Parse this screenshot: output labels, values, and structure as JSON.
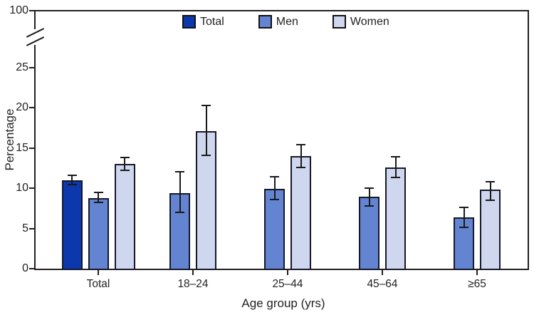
{
  "chart_data": {
    "type": "bar",
    "title": "",
    "xlabel": "Age group (yrs)",
    "ylabel": "Percentage",
    "y_axis": {
      "ticks": [
        0,
        5,
        10,
        15,
        20,
        25
      ],
      "broken_axis": true,
      "top_label_after_break": "100",
      "ylim_shown": [
        0,
        27
      ],
      "grid": false
    },
    "legend_position": "top-center",
    "legend": [
      {
        "name": "Total",
        "color": "#0d38ad"
      },
      {
        "name": "Men",
        "color": "#6384d0"
      },
      {
        "name": "Women",
        "color": "#cfd7ee"
      }
    ],
    "colors": {
      "total": "#0d38ad",
      "men": "#6384d0",
      "women": "#cfd7ee",
      "bar_border": "#16182b",
      "axis": "#231f20"
    },
    "error_bars": "95% confidence intervals",
    "groups": [
      {
        "label": "Total",
        "bars": [
          {
            "series": "Total",
            "value": 11.0,
            "ci_low": 10.4,
            "ci_high": 11.6
          },
          {
            "series": "Men",
            "value": 8.8,
            "ci_low": 8.2,
            "ci_high": 9.5
          },
          {
            "series": "Women",
            "value": 13.0,
            "ci_low": 12.2,
            "ci_high": 13.8
          }
        ]
      },
      {
        "label": "18–24",
        "bars": [
          {
            "series": "Men",
            "value": 9.4,
            "ci_low": 7.0,
            "ci_high": 12.0
          },
          {
            "series": "Women",
            "value": 17.1,
            "ci_low": 14.1,
            "ci_high": 20.3
          }
        ]
      },
      {
        "label": "25–44",
        "bars": [
          {
            "series": "Men",
            "value": 9.9,
            "ci_low": 8.6,
            "ci_high": 11.4
          },
          {
            "series": "Women",
            "value": 14.0,
            "ci_low": 12.6,
            "ci_high": 15.4
          }
        ]
      },
      {
        "label": "45–64",
        "bars": [
          {
            "series": "Men",
            "value": 8.9,
            "ci_low": 7.8,
            "ci_high": 10.0
          },
          {
            "series": "Women",
            "value": 12.6,
            "ci_low": 11.3,
            "ci_high": 13.9
          }
        ]
      },
      {
        "label": "≥65",
        "bars": [
          {
            "series": "Men",
            "value": 6.4,
            "ci_low": 5.1,
            "ci_high": 7.6
          },
          {
            "series": "Women",
            "value": 9.8,
            "ci_low": 8.5,
            "ci_high": 10.8
          }
        ]
      }
    ]
  }
}
